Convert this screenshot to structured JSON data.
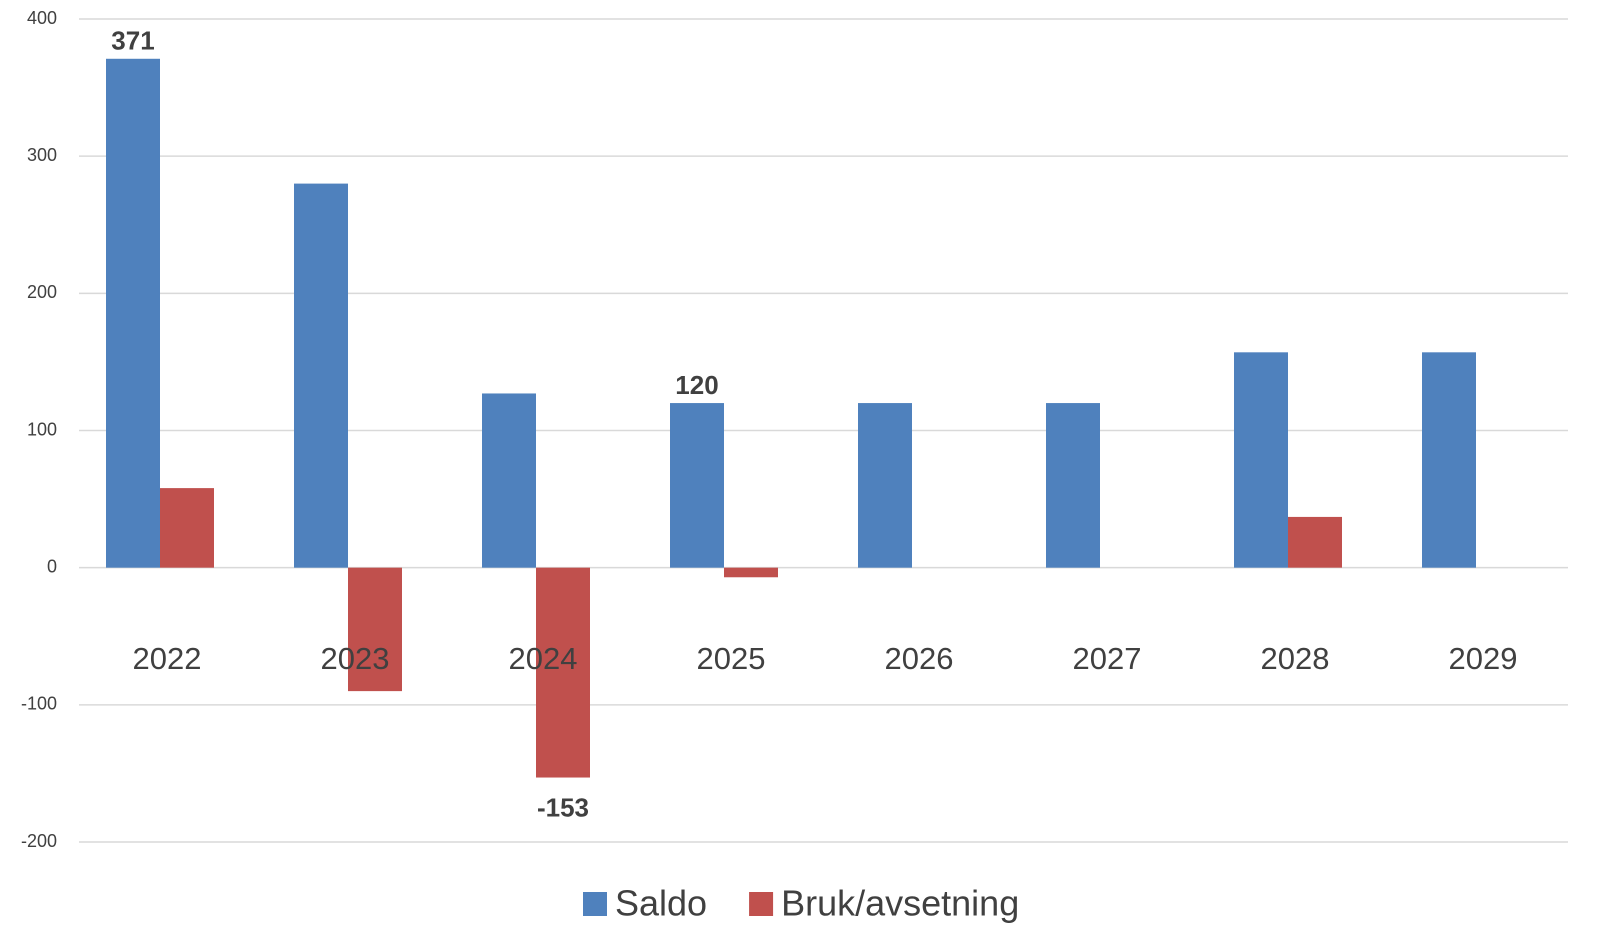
{
  "chart_data": {
    "type": "bar",
    "categories": [
      "2022",
      "2023",
      "2024",
      "2025",
      "2026",
      "2027",
      "2028",
      "2029"
    ],
    "series": [
      {
        "name": "Saldo",
        "color": "#4f81bd",
        "values": [
          371,
          280,
          127,
          120,
          120,
          120,
          157,
          157
        ],
        "value_labels": [
          "371",
          null,
          null,
          "120",
          null,
          null,
          null,
          null
        ]
      },
      {
        "name": "Bruk/avsetning",
        "color": "#c0504d",
        "values": [
          58,
          -90,
          -153,
          -7,
          0,
          0,
          37,
          0
        ],
        "value_labels": [
          null,
          null,
          "-153",
          null,
          null,
          null,
          null,
          null
        ]
      }
    ],
    "ylim": [
      -200,
      400
    ],
    "yticks": [
      -200,
      -100,
      0,
      100,
      200,
      300,
      400
    ],
    "grid": true
  }
}
